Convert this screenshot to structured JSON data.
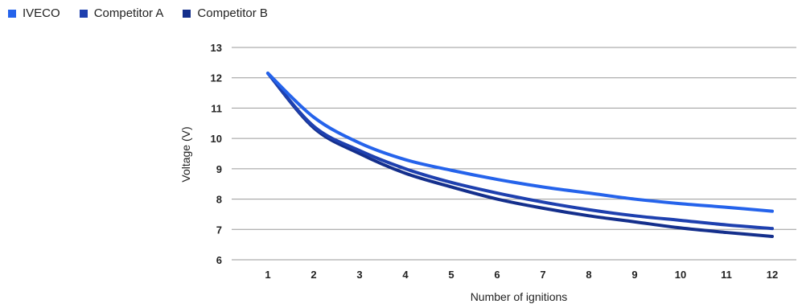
{
  "chart_data": {
    "type": "line",
    "xlabel": "Number of ignitions",
    "ylabel": "Voltage (V)",
    "x": [
      1,
      2,
      3,
      4,
      5,
      6,
      7,
      8,
      9,
      10,
      11,
      12
    ],
    "ylim": [
      6,
      13
    ],
    "yticks": [
      6,
      7,
      8,
      9,
      10,
      11,
      12,
      13
    ],
    "grid": "horizontal",
    "legend_position": "top-left",
    "series": [
      {
        "name": "IVECO",
        "color": "#2563eb",
        "values": [
          12.15,
          10.7,
          9.85,
          9.3,
          8.95,
          8.65,
          8.4,
          8.2,
          8.0,
          7.85,
          7.73,
          7.6
        ]
      },
      {
        "name": "Competitor A",
        "color": "#1e40af",
        "values": [
          12.15,
          10.4,
          9.6,
          9.0,
          8.55,
          8.2,
          7.9,
          7.65,
          7.45,
          7.3,
          7.15,
          7.03
        ]
      },
      {
        "name": "Competitor B",
        "color": "#142f8c",
        "values": [
          12.15,
          10.35,
          9.5,
          8.85,
          8.4,
          8.0,
          7.7,
          7.45,
          7.25,
          7.05,
          6.9,
          6.77
        ]
      }
    ]
  }
}
